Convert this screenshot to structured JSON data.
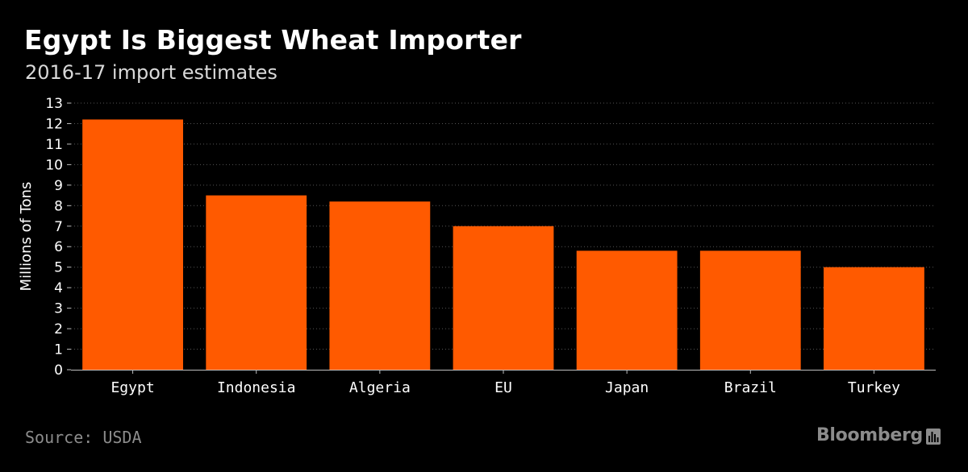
{
  "header": {
    "title": "Egypt Is Biggest Wheat Importer",
    "subtitle": "2016-17 import estimates"
  },
  "footer": {
    "source": "Source: USDA",
    "brand": "Bloomberg"
  },
  "colors": {
    "bar": "#ff5a00",
    "background": "#000000",
    "grid": "#555555"
  },
  "chart_data": {
    "type": "bar",
    "title": "Egypt Is Biggest Wheat Importer",
    "subtitle": "2016-17 import estimates",
    "categories": [
      "Egypt",
      "Indonesia",
      "Algeria",
      "EU",
      "Japan",
      "Brazil",
      "Turkey"
    ],
    "values": [
      12.2,
      8.5,
      8.2,
      7.0,
      5.8,
      5.8,
      5.0
    ],
    "ylabel": "Millions of Tons",
    "xlabel": "",
    "ylim": [
      0,
      13
    ],
    "yticks": [
      0,
      1,
      2,
      3,
      4,
      5,
      6,
      7,
      8,
      9,
      10,
      11,
      12,
      13
    ],
    "grid": true,
    "legend": "none"
  }
}
